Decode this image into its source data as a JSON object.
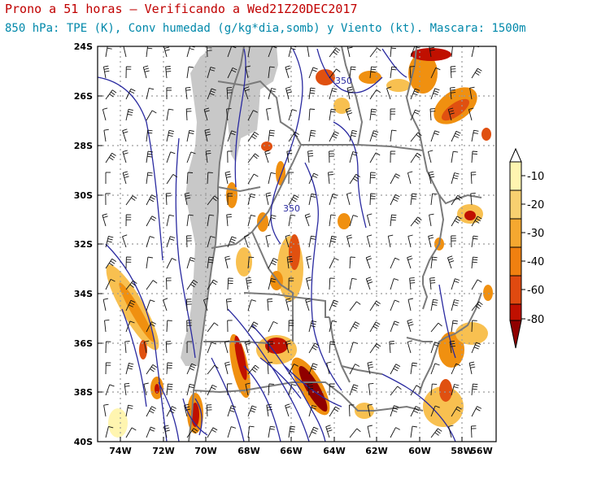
{
  "title": "Prono a 51 horas — Verificando a Wed21Z20DEC2017",
  "subtitle": "850 hPa: TPE (K), Conv humedad (g/kg*dia,somb) y Viento (kt). Mascara: 1500m",
  "map": {
    "lat_labels": [
      "24S",
      "26S",
      "28S",
      "30S",
      "32S",
      "34S",
      "36S",
      "38S",
      "40S"
    ],
    "lon_labels": [
      "74W",
      "72W",
      "70W",
      "68W",
      "66W",
      "64W",
      "62W",
      "60W",
      "58W",
      "56W"
    ],
    "contour_labels": [
      "350",
      "350"
    ],
    "colors": {
      "mask": "#c8c8c8",
      "contour": "#2a2aa0",
      "border": "#808080",
      "grid": "#999999"
    }
  },
  "colorbar": {
    "labels": [
      "-10",
      "-20",
      "-30",
      "-40",
      "-60",
      "-80"
    ],
    "colors": [
      "#ffffff",
      "#fff5b0",
      "#f8c050",
      "#f09010",
      "#e05010",
      "#c01000",
      "#900000"
    ]
  }
}
